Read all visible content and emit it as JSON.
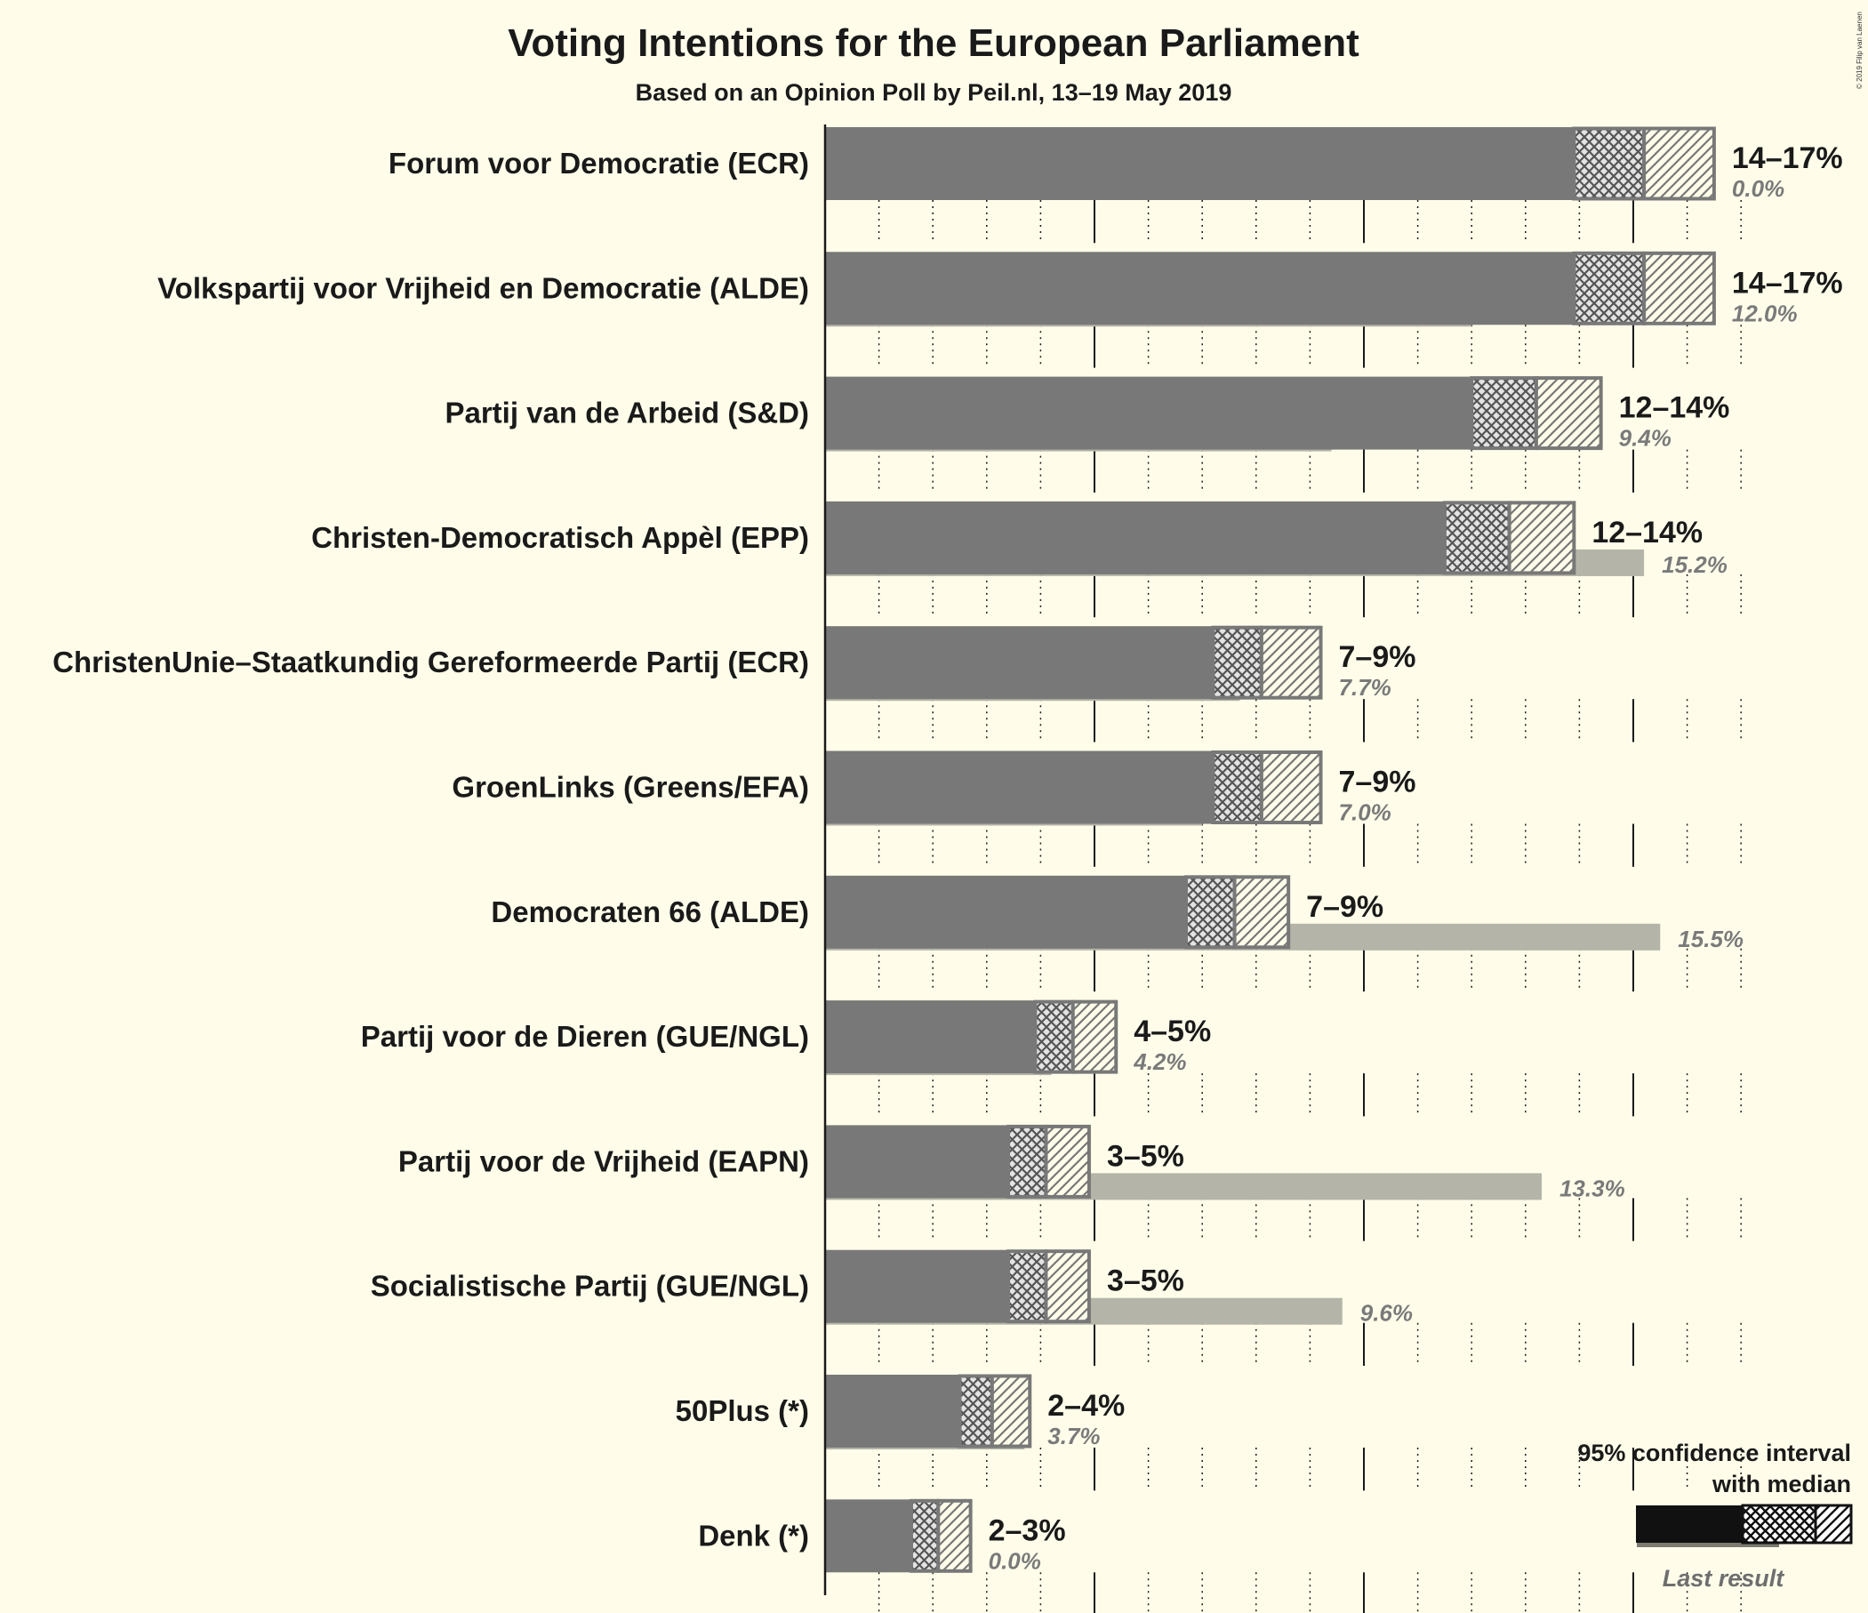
{
  "chart_data": {
    "type": "bar",
    "title": "Voting Intentions for the European Parliament",
    "subtitle": "Based on an Opinion Poll by Peil.nl, 13–19 May 2019",
    "copyright": "© 2019 Filip van Laenen",
    "x_unit": "%",
    "xlim": [
      0,
      17
    ],
    "grid": true,
    "legend": {
      "position": "bottom-right",
      "ci_label_line1": "95% confidence interval",
      "ci_label_line2": "with median",
      "last_result_label": "Last result"
    },
    "parties": [
      {
        "name": "Forum voor Democratie (ECR)",
        "range_label": "14–17%",
        "ci_low": 13.9,
        "median": 15.2,
        "ci_high": 16.5,
        "last_label": "0.0%",
        "last": 0.0
      },
      {
        "name": "Volkspartij voor Vrijheid en Democratie (ALDE)",
        "range_label": "14–17%",
        "ci_low": 13.9,
        "median": 15.2,
        "ci_high": 16.5,
        "last_label": "12.0%",
        "last": 12.0
      },
      {
        "name": "Partij van de Arbeid (S&D)",
        "range_label": "12–14%",
        "ci_low": 12.0,
        "median": 13.2,
        "ci_high": 14.4,
        "last_label": "9.4%",
        "last": 9.4
      },
      {
        "name": "Christen-Democratisch Appèl (EPP)",
        "range_label": "12–14%",
        "ci_low": 11.5,
        "median": 12.7,
        "ci_high": 13.9,
        "last_label": "15.2%",
        "last": 15.2
      },
      {
        "name": "ChristenUnie–Staatkundig Gereformeerde Partij (ECR)",
        "range_label": "7–9%",
        "ci_low": 7.2,
        "median": 8.1,
        "ci_high": 9.2,
        "last_label": "7.7%",
        "last": 7.7
      },
      {
        "name": "GroenLinks (Greens/EFA)",
        "range_label": "7–9%",
        "ci_low": 7.2,
        "median": 8.1,
        "ci_high": 9.2,
        "last_label": "7.0%",
        "last": 7.0
      },
      {
        "name": "Democraten 66 (ALDE)",
        "range_label": "7–9%",
        "ci_low": 6.7,
        "median": 7.6,
        "ci_high": 8.6,
        "last_label": "15.5%",
        "last": 15.5
      },
      {
        "name": "Partij voor de Dieren (GUE/NGL)",
        "range_label": "4–5%",
        "ci_low": 3.9,
        "median": 4.6,
        "ci_high": 5.4,
        "last_label": "4.2%",
        "last": 4.2
      },
      {
        "name": "Partij voor de Vrijheid (EAPN)",
        "range_label": "3–5%",
        "ci_low": 3.4,
        "median": 4.1,
        "ci_high": 4.9,
        "last_label": "13.3%",
        "last": 13.3
      },
      {
        "name": "Socialistische Partij (GUE/NGL)",
        "range_label": "3–5%",
        "ci_low": 3.4,
        "median": 4.1,
        "ci_high": 4.9,
        "last_label": "9.6%",
        "last": 9.6
      },
      {
        "name": "50Plus (*)",
        "range_label": "2–4%",
        "ci_low": 2.5,
        "median": 3.1,
        "ci_high": 3.8,
        "last_label": "3.7%",
        "last": 3.7
      },
      {
        "name": "Denk (*)",
        "range_label": "2–3%",
        "ci_low": 1.6,
        "median": 2.1,
        "ci_high": 2.7,
        "last_label": "0.0%",
        "last": 0.0
      }
    ]
  },
  "colors": {
    "background": "#fffdea",
    "bar": "#787878",
    "ci_fill": "#c8c8c8",
    "outline": "#787878",
    "last_result": "#b4b4a8",
    "text": "#1a1a1a",
    "last_text": "#7a7a7a",
    "grid": "#1a1a1a"
  }
}
